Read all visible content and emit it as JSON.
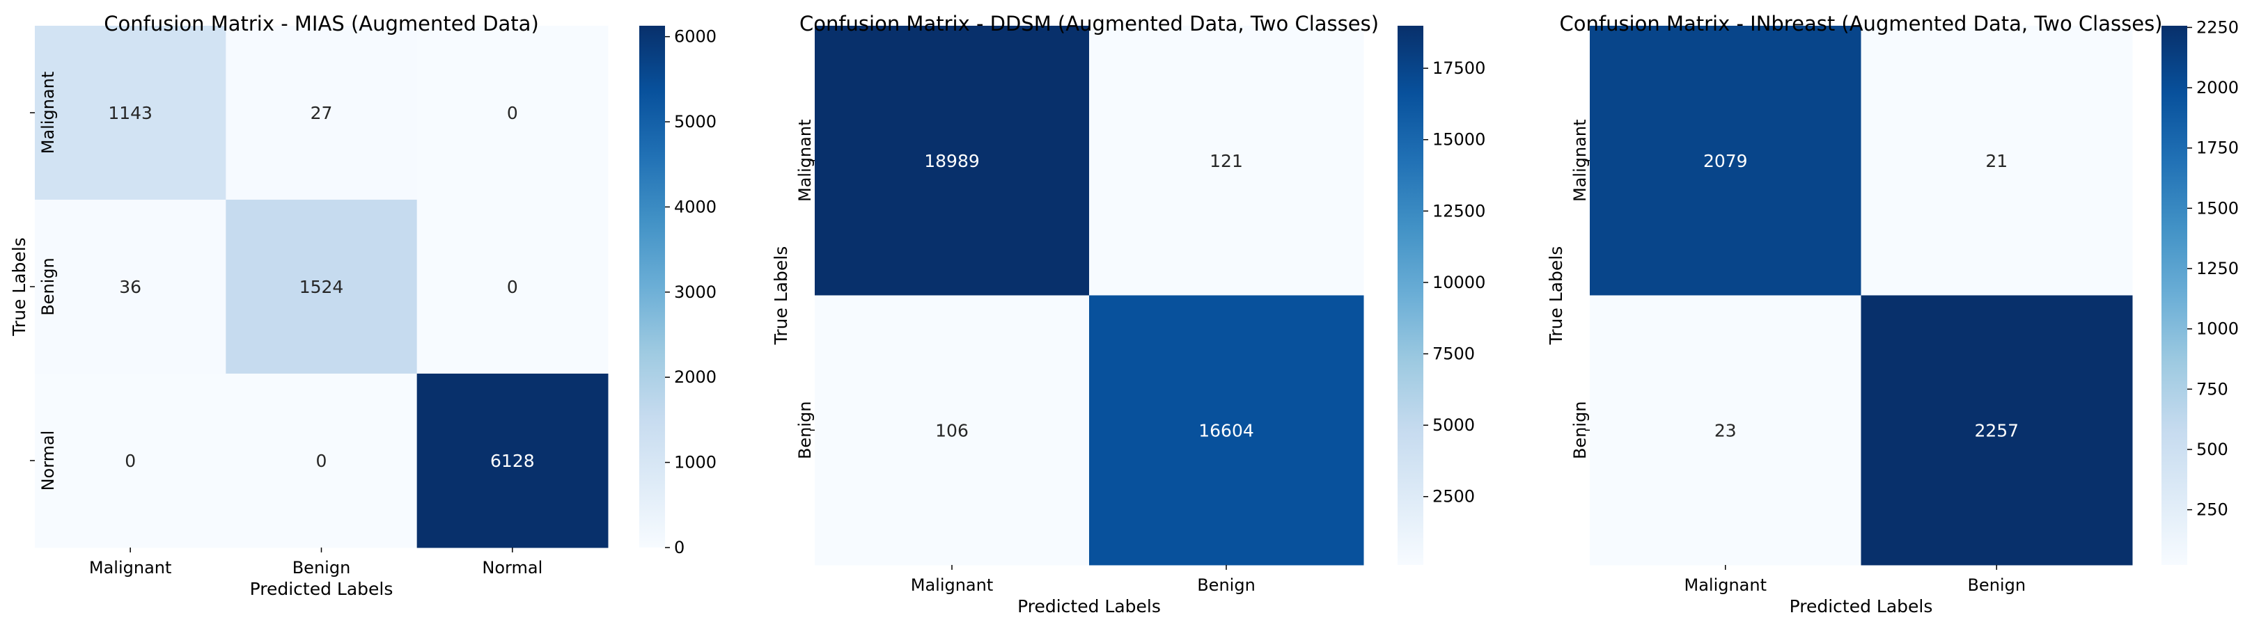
{
  "chart_data": [
    {
      "type": "heatmap",
      "title": "Confusion Matrix - MIAS (Augmented Data)",
      "xlabel": "Predicted Labels",
      "ylabel": "True Labels",
      "x_categories": [
        "Malignant",
        "Benign",
        "Normal"
      ],
      "y_categories": [
        "Malignant",
        "Benign",
        "Normal"
      ],
      "values": [
        [
          1143,
          27,
          0
        ],
        [
          36,
          1524,
          0
        ],
        [
          0,
          0,
          6128
        ]
      ],
      "colormap": "Blues",
      "colorbar": {
        "min": 0,
        "max": 6128,
        "ticks": [
          0,
          1000,
          2000,
          3000,
          4000,
          5000,
          6000
        ]
      }
    },
    {
      "type": "heatmap",
      "title": "Confusion Matrix - DDSM (Augmented Data, Two Classes)",
      "xlabel": "Predicted Labels",
      "ylabel": "True Labels",
      "x_categories": [
        "Malignant",
        "Benign"
      ],
      "y_categories": [
        "Malignant",
        "Benign"
      ],
      "values": [
        [
          18989,
          121
        ],
        [
          106,
          16604
        ]
      ],
      "colormap": "Blues",
      "colorbar": {
        "min": 106,
        "max": 18989,
        "ticks": [
          2500,
          5000,
          7500,
          10000,
          12500,
          15000,
          17500
        ]
      }
    },
    {
      "type": "heatmap",
      "title": "Confusion Matrix - INbreast (Augmented Data, Two Classes)",
      "xlabel": "Predicted Labels",
      "ylabel": "True Labels",
      "x_categories": [
        "Malignant",
        "Benign"
      ],
      "y_categories": [
        "Malignant",
        "Benign"
      ],
      "values": [
        [
          2079,
          21
        ],
        [
          23,
          2257
        ]
      ],
      "colormap": "Blues",
      "colorbar": {
        "min": 21,
        "max": 2257,
        "ticks": [
          250,
          500,
          750,
          1000,
          1250,
          1500,
          1750,
          2000,
          2250
        ]
      }
    }
  ]
}
